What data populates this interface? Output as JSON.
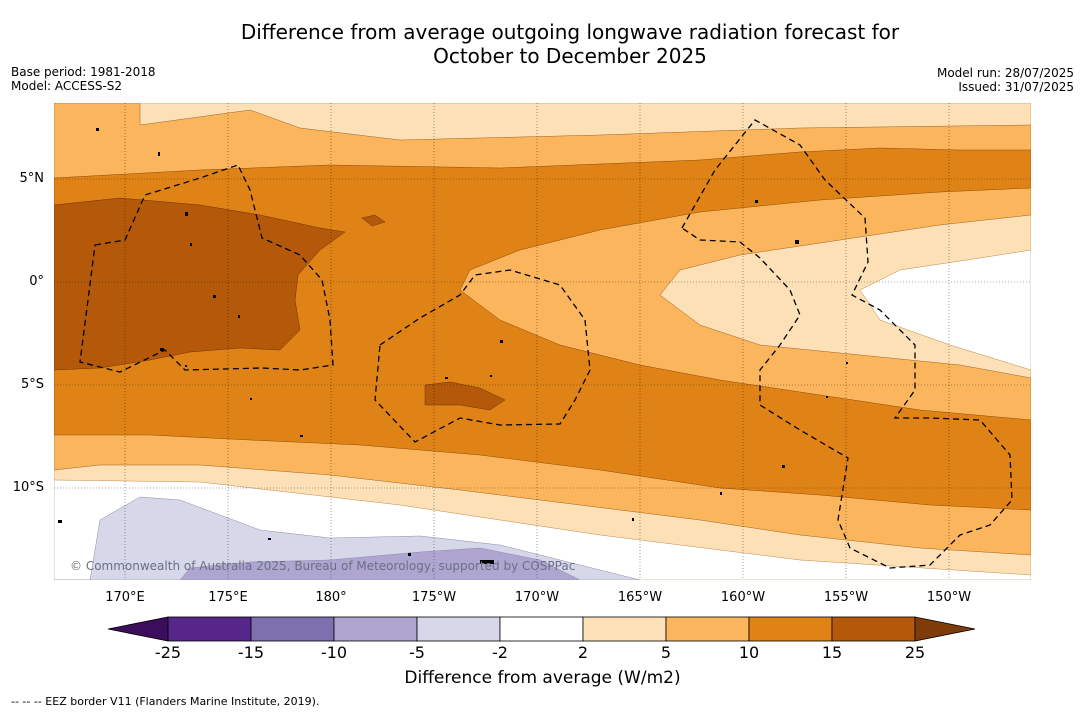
{
  "title": {
    "line1": "Difference from average outgoing longwave radiation forecast for",
    "line2": "October to December 2025"
  },
  "meta_left": {
    "base_period": "Base period: 1981-2018",
    "model": "Model: ACCESS-S2"
  },
  "meta_right": {
    "model_run": "Model run: 28/07/2025",
    "issued": "Issued: 31/07/2025"
  },
  "lat_labels": [
    "5°N",
    "0°",
    "5°S",
    "10°S"
  ],
  "lon_labels": [
    "170°E",
    "175°E",
    "180°",
    "175°W",
    "170°W",
    "165°W",
    "160°W",
    "155°W",
    "150°W"
  ],
  "colorbar": {
    "ticks": [
      "-25",
      "-15",
      "-10",
      "-5",
      "-2",
      "2",
      "5",
      "10",
      "15",
      "25"
    ],
    "colors": [
      "#3b0d5c",
      "#56268a",
      "#7e6fae",
      "#aea6d1",
      "#d7d7ea",
      "#ffffff",
      "#fde0b6",
      "#fbb55d",
      "#e08316",
      "#b35909",
      "#7f3b08"
    ],
    "label": "Difference from average (W/m2)"
  },
  "copyright": "© Commonwealth of Australia 2025, Bureau of Meteorology, supported by COSPPac",
  "footnote": "--  --  -- EEZ border V11 (Flanders Marine Institute, 2019)."
}
